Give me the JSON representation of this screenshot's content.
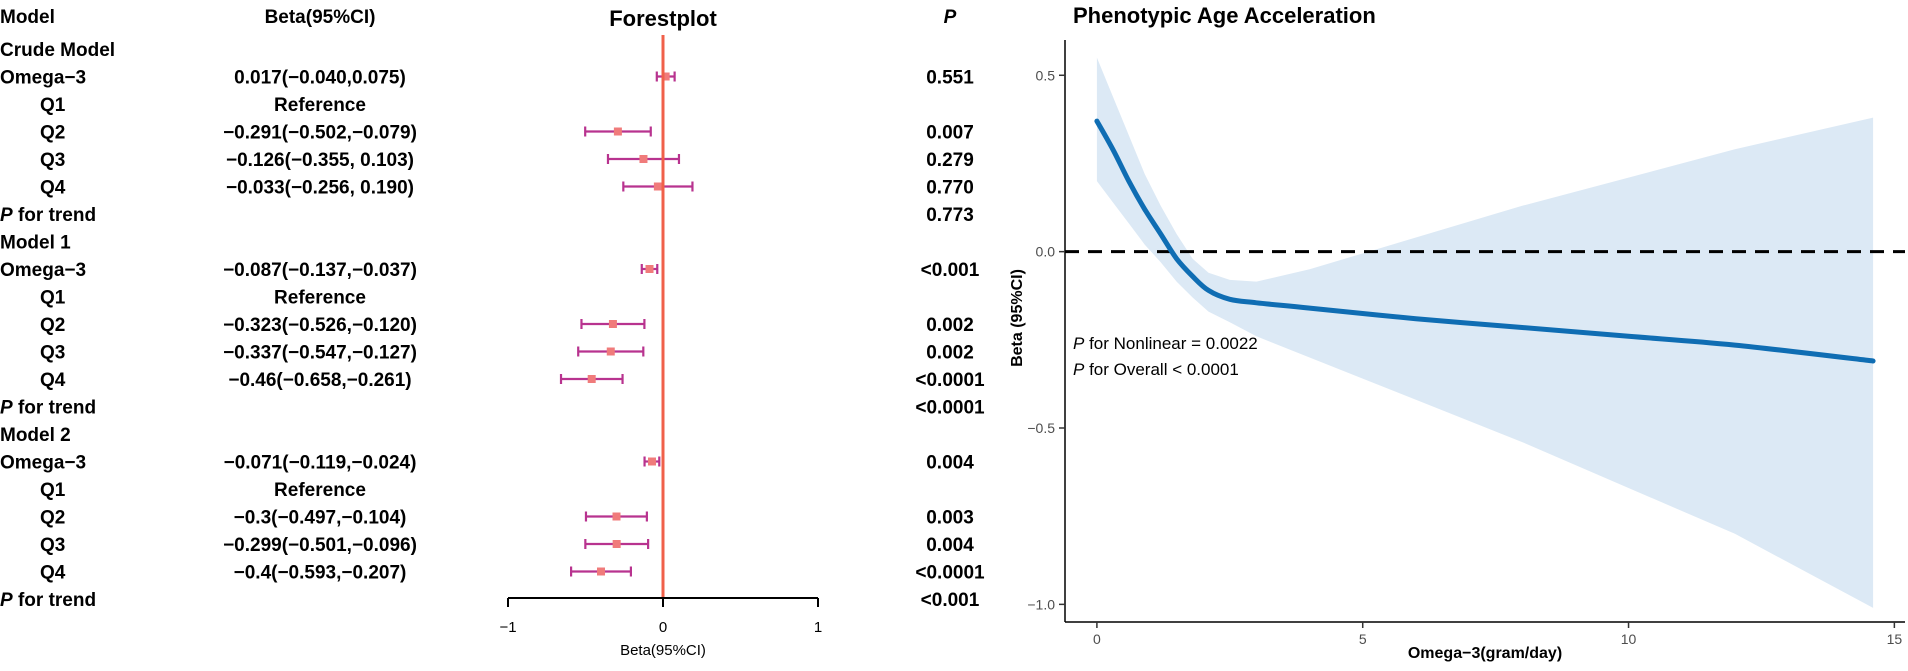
{
  "chart_data": [
    {
      "type": "forest",
      "title": "Forestplot",
      "headers": {
        "model": "Model",
        "beta": "Beta(95%CI)",
        "p": "P"
      },
      "xlabel": "Beta(95%CI)",
      "xlim": [
        -1,
        1
      ],
      "xticks": [
        "−1",
        "0",
        "1"
      ],
      "reference_line": 0,
      "rows": [
        {
          "label": "Crude Model",
          "kind": "section"
        },
        {
          "label": "Omega−3",
          "kind": "row",
          "beta_text": "0.017(−0.040,0.075)",
          "p": "0.551",
          "est": 0.017,
          "lo": -0.04,
          "hi": 0.075
        },
        {
          "label": "Q1",
          "kind": "sub",
          "beta_text": "Reference",
          "p": ""
        },
        {
          "label": "Q2",
          "kind": "sub",
          "beta_text": "−0.291(−0.502,−0.079)",
          "p": "0.007",
          "est": -0.291,
          "lo": -0.502,
          "hi": -0.079
        },
        {
          "label": "Q3",
          "kind": "sub",
          "beta_text": "−0.126(−0.355, 0.103)",
          "p": "0.279",
          "est": -0.126,
          "lo": -0.355,
          "hi": 0.103
        },
        {
          "label": "Q4",
          "kind": "sub",
          "beta_text": "−0.033(−0.256, 0.190)",
          "p": "0.770",
          "est": -0.033,
          "lo": -0.256,
          "hi": 0.19
        },
        {
          "label": "P",
          "label_rest": " for trend",
          "kind": "trend",
          "p": "0.773"
        },
        {
          "label": "Model 1",
          "kind": "section"
        },
        {
          "label": "Omega−3",
          "kind": "row",
          "beta_text": "−0.087(−0.137,−0.037)",
          "p": "<0.001",
          "est": -0.087,
          "lo": -0.137,
          "hi": -0.037
        },
        {
          "label": "Q1",
          "kind": "sub",
          "beta_text": "Reference",
          "p": ""
        },
        {
          "label": "Q2",
          "kind": "sub",
          "beta_text": "−0.323(−0.526,−0.120)",
          "p": "0.002",
          "est": -0.323,
          "lo": -0.526,
          "hi": -0.12
        },
        {
          "label": "Q3",
          "kind": "sub",
          "beta_text": "−0.337(−0.547,−0.127)",
          "p": "0.002",
          "est": -0.337,
          "lo": -0.547,
          "hi": -0.127
        },
        {
          "label": "Q4",
          "kind": "sub",
          "beta_text": "−0.46(−0.658,−0.261)",
          "p": "<0.0001",
          "est": -0.46,
          "lo": -0.658,
          "hi": -0.261
        },
        {
          "label": "P",
          "label_rest": " for trend",
          "kind": "trend",
          "p": "<0.0001"
        },
        {
          "label": "Model 2",
          "kind": "section"
        },
        {
          "label": "Omega−3",
          "kind": "row",
          "beta_text": "−0.071(−0.119,−0.024)",
          "p": "0.004",
          "est": -0.071,
          "lo": -0.119,
          "hi": -0.024
        },
        {
          "label": "Q1",
          "kind": "sub",
          "beta_text": "Reference",
          "p": ""
        },
        {
          "label": "Q2",
          "kind": "sub",
          "beta_text": "−0.3(−0.497,−0.104)",
          "p": "0.003",
          "est": -0.3,
          "lo": -0.497,
          "hi": -0.104
        },
        {
          "label": "Q3",
          "kind": "sub",
          "beta_text": "−0.299(−0.501,−0.096)",
          "p": "0.004",
          "est": -0.299,
          "lo": -0.501,
          "hi": -0.096
        },
        {
          "label": "Q4",
          "kind": "sub",
          "beta_text": "−0.4(−0.593,−0.207)",
          "p": "<0.0001",
          "est": -0.4,
          "lo": -0.593,
          "hi": -0.207
        },
        {
          "label": "P",
          "label_rest": " for trend",
          "kind": "trend",
          "p": "<0.001"
        }
      ],
      "colors": {
        "ci": "#b8338f",
        "point": "#f07b7b",
        "reference": "#f0604a"
      }
    },
    {
      "type": "line",
      "title": "Phenotypic Age Acceleration",
      "xlabel": "Omega−3(gram/day)",
      "ylabel": "Beta (95%CI)",
      "xlim": [
        -0.6,
        15.2
      ],
      "ylim": [
        -1.05,
        0.6
      ],
      "xticks": [
        0,
        5,
        10,
        15
      ],
      "xtick_labels": [
        "0",
        "5",
        "10",
        "15"
      ],
      "yticks": [
        0.5,
        0.0,
        -0.5,
        -1.0
      ],
      "ytick_labels": [
        "0.5",
        "0.0",
        "−0.5",
        "−1.0"
      ],
      "reference_line": 0,
      "series": [
        {
          "name": "Beta",
          "x": [
            0,
            0.3,
            0.6,
            0.9,
            1.2,
            1.5,
            1.8,
            2.1,
            2.5,
            3.0,
            4,
            6,
            8,
            10,
            12,
            14.6
          ],
          "y": [
            0.37,
            0.29,
            0.2,
            0.12,
            0.05,
            -0.02,
            -0.07,
            -0.11,
            -0.135,
            -0.145,
            -0.16,
            -0.19,
            -0.215,
            -0.24,
            -0.265,
            -0.31
          ],
          "lower": [
            0.2,
            0.14,
            0.08,
            0.02,
            -0.03,
            -0.085,
            -0.13,
            -0.17,
            -0.2,
            -0.24,
            -0.3,
            -0.42,
            -0.54,
            -0.67,
            -0.8,
            -1.01
          ],
          "upper": [
            0.55,
            0.44,
            0.33,
            0.22,
            0.13,
            0.05,
            -0.02,
            -0.06,
            -0.08,
            -0.085,
            -0.05,
            0.04,
            0.13,
            0.21,
            0.29,
            0.38
          ]
        }
      ],
      "annotations": [
        {
          "italic": "P",
          "text": " for Nonlinear = 0.0022"
        },
        {
          "italic": "P",
          "text": " for Overall < 0.0001"
        }
      ],
      "colors": {
        "line": "#0f6db3",
        "band": "#dce9f5",
        "reference": "#000000"
      }
    }
  ]
}
